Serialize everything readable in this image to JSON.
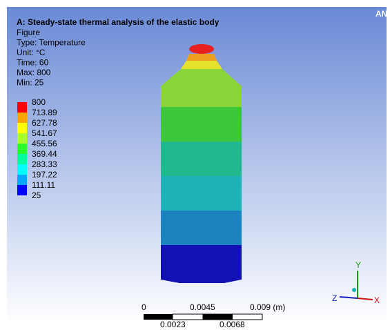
{
  "header": {
    "title": "A: Steady-state thermal analysis of the elastic body",
    "lines": [
      "Figure",
      "Type: Temperature",
      "Unit: °C",
      "Time: 60",
      "Max: 800",
      "Min: 25"
    ]
  },
  "legend": {
    "entries": [
      {
        "label": "800",
        "color": "#ff0000"
      },
      {
        "label": "713.89",
        "color": "#ffa500"
      },
      {
        "label": "627.78",
        "color": "#ffff00"
      },
      {
        "label": "541.67",
        "color": "#a8ff2c"
      },
      {
        "label": "455.56",
        "color": "#2cff2c"
      },
      {
        "label": "369.44",
        "color": "#00ff9e"
      },
      {
        "label": "283.33",
        "color": "#00ffff"
      },
      {
        "label": "197.22",
        "color": "#00a8ff"
      },
      {
        "label": "111.11",
        "color": "#0000ff"
      },
      {
        "label": "25",
        "color": null
      }
    ]
  },
  "scale": {
    "top": [
      "0",
      "0.0045",
      "0.009 (m)"
    ],
    "bottom": [
      "0.0023",
      "0.0068"
    ]
  },
  "triad": {
    "y": "Y",
    "z": "Z",
    "x": "X"
  },
  "logo": "ANSYS"
}
